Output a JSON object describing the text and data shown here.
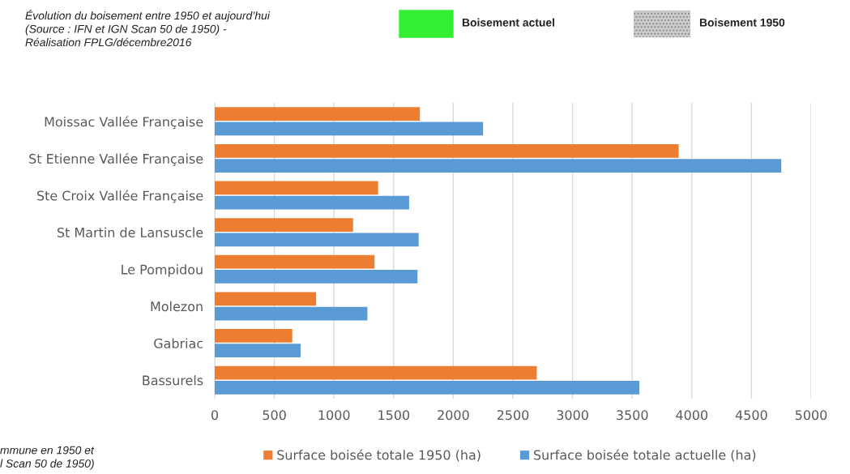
{
  "chart_data": {
    "type": "bar",
    "orientation": "horizontal",
    "categories": [
      "Moissac Vallée Française",
      "St Etienne Vallée Française",
      "Ste Croix Vallée Française",
      "St Martin de Lansuscle",
      "Le Pompidou",
      "Molezon",
      "Gabriac",
      "Bassurels"
    ],
    "series": [
      {
        "name": "Surface boisée totale 1950 (ha)",
        "color": "#ed7d31",
        "values": [
          1720,
          3890,
          1370,
          1160,
          1340,
          850,
          650,
          2700
        ]
      },
      {
        "name": "Surface boisée totale actuelle (ha)",
        "color": "#5b9bd5",
        "values": [
          2250,
          4750,
          1630,
          1710,
          1700,
          1280,
          720,
          3560
        ]
      }
    ],
    "xlim": [
      0,
      5000
    ],
    "xticks": [
      0,
      500,
      1000,
      1500,
      2000,
      2500,
      3000,
      3500,
      4000,
      4500,
      5000
    ],
    "grid": "x",
    "legend": "bottom",
    "annotations": [
      "Évolution du boisement entre 1950 et aujourd’hui\n(Source : IFN et IGN Scan 50 de 1950) -\nRéalisation FPLG/décembre2016",
      "Boisement actuel",
      "Boisement 1950",
      "mmune en 1950 et\nl Scan 50 de 1950)"
    ]
  }
}
